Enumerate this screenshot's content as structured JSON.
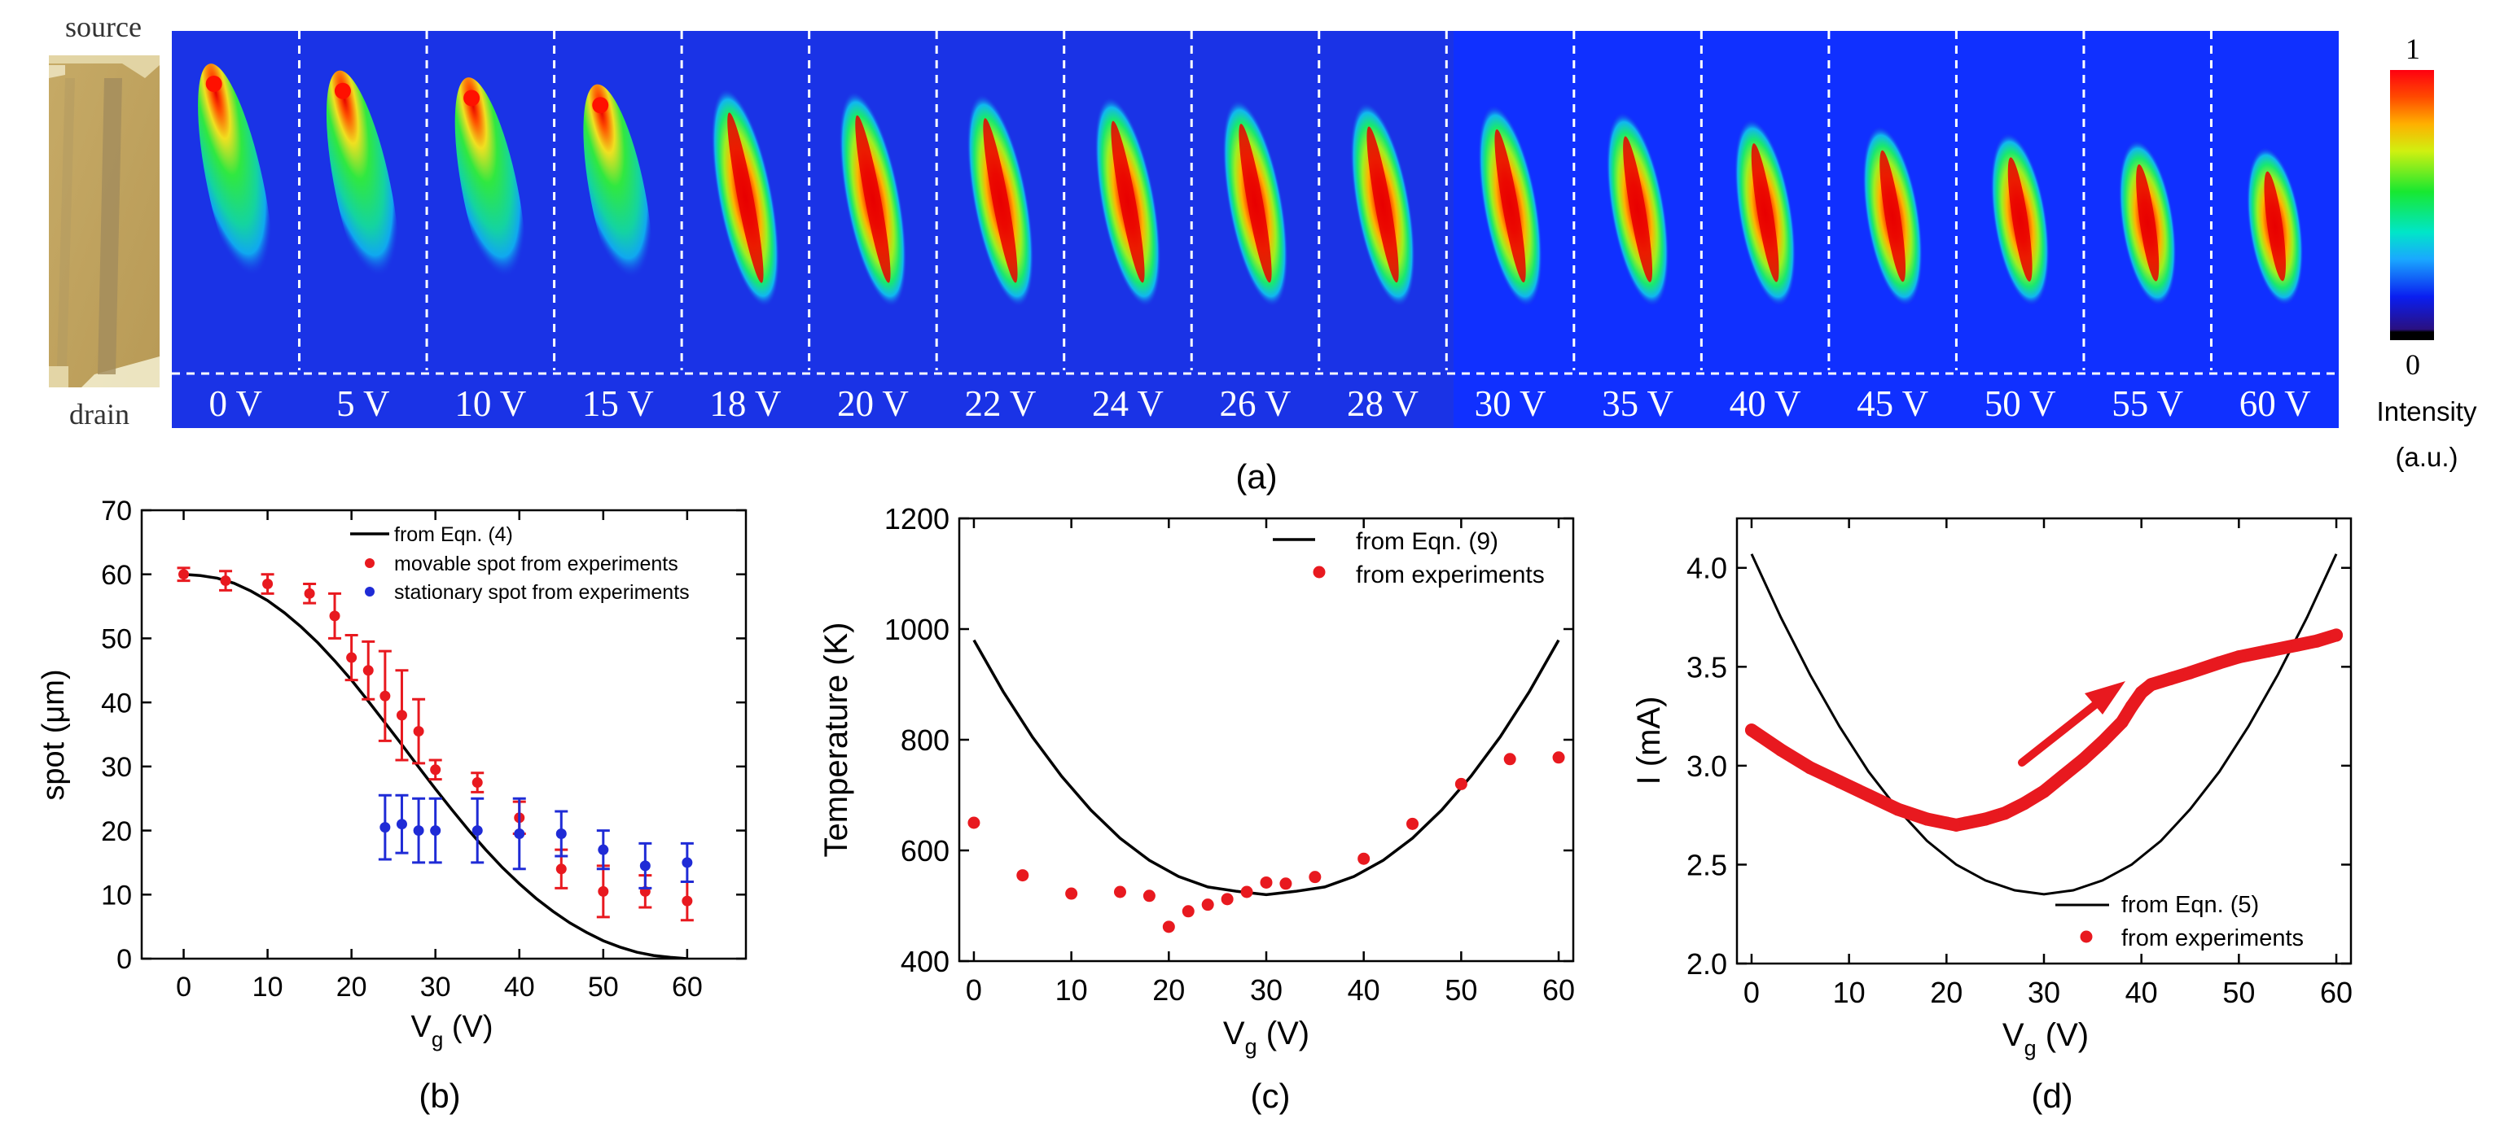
{
  "panel_a": {
    "label": "(a)",
    "photo_top_label": "source",
    "photo_bottom_label": "drain",
    "frames": [
      {
        "label": "0 V",
        "vg": 0,
        "bright_end": "top"
      },
      {
        "label": "5 V",
        "vg": 5,
        "bright_end": "top"
      },
      {
        "label": "10 V",
        "vg": 10,
        "bright_end": "top"
      },
      {
        "label": "15 V",
        "vg": 15,
        "bright_end": "top"
      },
      {
        "label": "18 V",
        "vg": 18,
        "bright_end": "center"
      },
      {
        "label": "20 V",
        "vg": 20,
        "bright_end": "center"
      },
      {
        "label": "22 V",
        "vg": 22,
        "bright_end": "center"
      },
      {
        "label": "24 V",
        "vg": 24,
        "bright_end": "center"
      },
      {
        "label": "26 V",
        "vg": 26,
        "bright_end": "center"
      },
      {
        "label": "28 V",
        "vg": 28,
        "bright_end": "center"
      },
      {
        "label": "30 V",
        "vg": 30,
        "bright_end": "center"
      },
      {
        "label": "35 V",
        "vg": 35,
        "bright_end": "center"
      },
      {
        "label": "40 V",
        "vg": 40,
        "bright_end": "center"
      },
      {
        "label": "45 V",
        "vg": 45,
        "bright_end": "center"
      },
      {
        "label": "50 V",
        "vg": 50,
        "bright_end": "center"
      },
      {
        "label": "55 V",
        "vg": 55,
        "bright_end": "center"
      },
      {
        "label": "60 V",
        "vg": 60,
        "bright_end": "center"
      }
    ],
    "colorbar": {
      "max_label": "1",
      "min_label": "0",
      "title_line1": "Intensity",
      "title_line2": "(a.u.)"
    }
  },
  "colors": {
    "map_background": "#1a33e6",
    "map_background_alt": "#1030ff",
    "experiment_red": "#e8191f",
    "experiment_blue": "#1f2bd6",
    "model_black": "#000000",
    "photo_gold": "#c2a35e"
  },
  "chart_data": [
    {
      "id": "b",
      "type": "scatter",
      "panel_label": "(b)",
      "xlabel_main": "V",
      "xlabel_sub": "g",
      "xlabel_unit": " (V)",
      "ylabel": "spot (μm)",
      "xlim": [
        -5,
        67
      ],
      "ylim": [
        0,
        70
      ],
      "xticks": [
        0,
        10,
        20,
        30,
        40,
        50,
        60
      ],
      "yticks": [
        0,
        10,
        20,
        30,
        40,
        50,
        60,
        70
      ],
      "legend": [
        "from Eqn. (4)",
        "movable spot from experiments",
        "stationary spot from experiments"
      ],
      "curve": {
        "name": "from Eqn. (4)",
        "x": [
          0,
          2,
          4,
          6,
          8,
          10,
          12,
          14,
          16,
          18,
          20,
          22,
          24,
          26,
          28,
          30,
          32,
          34,
          36,
          38,
          40,
          42,
          44,
          46,
          48,
          50,
          52,
          54,
          56,
          58,
          60
        ],
        "y": [
          60,
          59.8,
          59.4,
          58.6,
          57.4,
          55.9,
          54.0,
          51.8,
          49.3,
          46.5,
          43.5,
          40.2,
          36.8,
          33.4,
          29.9,
          26.5,
          23.2,
          20.0,
          17.0,
          14.2,
          11.7,
          9.4,
          7.4,
          5.6,
          4.1,
          2.8,
          1.8,
          1.0,
          0.5,
          0.2,
          0.0
        ]
      },
      "series": [
        {
          "name": "movable spot from experiments",
          "x": [
            0,
            5,
            10,
            15,
            18,
            20,
            22,
            24,
            26,
            28,
            30,
            35,
            40,
            45,
            50,
            55,
            60
          ],
          "y": [
            60,
            59,
            58.5,
            57,
            53.5,
            47,
            45,
            41,
            38,
            35.5,
            29.5,
            27.5,
            22,
            14,
            10.5,
            10.5,
            9
          ],
          "err": [
            1,
            1.5,
            1.5,
            1.5,
            3.5,
            3.5,
            4.5,
            7,
            7,
            5,
            1.5,
            1.5,
            2.5,
            3,
            4,
            2.5,
            3
          ]
        },
        {
          "name": "stationary spot from experiments",
          "x": [
            24,
            26,
            28,
            30,
            35,
            40,
            45,
            50,
            55,
            60
          ],
          "y": [
            20.5,
            21,
            20,
            20,
            20,
            19.5,
            19.5,
            17,
            14.5,
            15
          ],
          "err": [
            5,
            4.5,
            5,
            5,
            5,
            5.5,
            3.5,
            3,
            3.5,
            3
          ]
        }
      ]
    },
    {
      "id": "c",
      "type": "scatter",
      "panel_label": "(c)",
      "xlabel_main": "V",
      "xlabel_sub": "g",
      "xlabel_unit": " (V)",
      "ylabel": "Temperature (K)",
      "xlim": [
        -1.5,
        61.5
      ],
      "ylim": [
        400,
        1200
      ],
      "xticks": [
        0,
        10,
        20,
        30,
        40,
        50,
        60
      ],
      "yticks": [
        400,
        600,
        800,
        1000,
        1200
      ],
      "legend": [
        "from Eqn. (9)",
        "from experiments"
      ],
      "curve": {
        "name": "from Eqn. (9)",
        "x": [
          0,
          3,
          6,
          9,
          12,
          15,
          18,
          21,
          24,
          27,
          30,
          33,
          36,
          39,
          42,
          45,
          48,
          51,
          54,
          57,
          60
        ],
        "y": [
          980,
          887,
          805,
          734,
          673,
          622,
          582,
          553,
          534,
          526,
          520,
          526,
          534,
          553,
          582,
          622,
          673,
          734,
          805,
          887,
          980
        ]
      },
      "series": [
        {
          "name": "from experiments",
          "x": [
            0,
            5,
            10,
            15,
            18,
            20,
            22,
            24,
            26,
            28,
            30,
            32,
            35,
            40,
            45,
            50,
            55,
            60
          ],
          "y": [
            650,
            555,
            522,
            525,
            518,
            462,
            490,
            502,
            512,
            525,
            542,
            540,
            552,
            585,
            648,
            720,
            765,
            768
          ]
        }
      ]
    },
    {
      "id": "d",
      "type": "line",
      "panel_label": "(d)",
      "xlabel_main": "V",
      "xlabel_sub": "g",
      "xlabel_unit": " (V)",
      "ylabel": "I (mA)",
      "xlim": [
        -1.5,
        61.5
      ],
      "ylim": [
        2.0,
        4.25
      ],
      "xticks": [
        0,
        10,
        20,
        30,
        40,
        50,
        60
      ],
      "yticks": [
        2.0,
        2.5,
        3.0,
        3.5,
        4.0
      ],
      "legend": [
        "from Eqn. (5)",
        "from experiments"
      ],
      "annotation": "arrow indicating sweep direction (increasing Vg)",
      "curve": {
        "name": "from Eqn. (5)",
        "x": [
          0,
          3,
          6,
          9,
          12,
          15,
          18,
          21,
          24,
          27,
          30,
          33,
          36,
          39,
          42,
          45,
          48,
          51,
          54,
          57,
          60
        ],
        "y": [
          4.07,
          3.75,
          3.46,
          3.2,
          2.97,
          2.78,
          2.62,
          2.5,
          2.42,
          2.37,
          2.35,
          2.37,
          2.42,
          2.5,
          2.62,
          2.78,
          2.97,
          3.2,
          3.46,
          3.75,
          4.07
        ]
      },
      "series": [
        {
          "name": "from experiments",
          "x": [
            0,
            3,
            6,
            9,
            12,
            15,
            18,
            20,
            21,
            22,
            24,
            26,
            28,
            30,
            32,
            34,
            36,
            38,
            39,
            40,
            41,
            43,
            45,
            48,
            50,
            53,
            56,
            58,
            60
          ],
          "y": [
            3.18,
            3.08,
            2.99,
            2.92,
            2.85,
            2.78,
            2.73,
            2.71,
            2.7,
            2.71,
            2.73,
            2.76,
            2.81,
            2.87,
            2.95,
            3.03,
            3.12,
            3.22,
            3.3,
            3.37,
            3.41,
            3.44,
            3.47,
            3.52,
            3.55,
            3.58,
            3.61,
            3.63,
            3.66
          ]
        }
      ]
    }
  ]
}
